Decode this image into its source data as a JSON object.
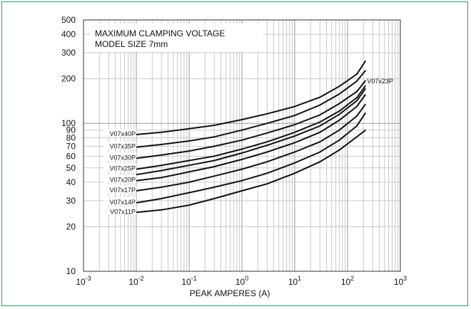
{
  "frame_color": "#2f9b6a",
  "chart_data": {
    "type": "line",
    "title": "MAXIMUM CLAMPING VOLTAGE",
    "subtitle": "MODEL SIZE 7mm",
    "xlabel": "PEAK AMPERES (A)",
    "ylabel": "",
    "xscale": "log",
    "yscale": "log",
    "xlim": [
      0.001,
      1000
    ],
    "ylim": [
      10,
      500
    ],
    "grid": true,
    "y_ticks": [
      "10",
      "20",
      "30",
      "40",
      "50",
      "60",
      "70",
      "80",
      "90",
      "100",
      "200",
      "300",
      "400",
      "500"
    ],
    "x_ticks": [
      {
        "base": "10",
        "exp": "-3"
      },
      {
        "base": "10",
        "exp": "-2"
      },
      {
        "base": "10",
        "exp": "-1"
      },
      {
        "base": "10",
        "exp": "0"
      },
      {
        "base": "10",
        "exp": "1"
      },
      {
        "base": "10",
        "exp": "2"
      },
      {
        "base": "10",
        "exp": "3"
      }
    ],
    "x": [
      0.01,
      0.03,
      0.1,
      0.3,
      1,
      3,
      10,
      30,
      70,
      150,
      220
    ],
    "series": [
      {
        "name": "V07x40P",
        "values": [
          84,
          87,
          92,
          97,
          106,
          116,
          130,
          150,
          178,
          215,
          265
        ]
      },
      {
        "name": "V07x35P",
        "values": [
          69,
          72,
          76,
          81,
          90,
          100,
          113,
          133,
          158,
          193,
          228
        ]
      },
      {
        "name": "V07x30P",
        "values": [
          58,
          61,
          65,
          70,
          77,
          86,
          98,
          114,
          136,
          164,
          195
        ]
      },
      {
        "name": "V07x25P",
        "values": [
          49,
          52,
          56,
          60,
          67,
          75,
          87,
          102,
          121,
          149,
          180
        ]
      },
      {
        "name": "V07x23P",
        "values": [
          45,
          48,
          52,
          56,
          63,
          71,
          82,
          96,
          115,
          142,
          172
        ]
      },
      {
        "name": "V07x20P",
        "values": [
          41,
          43,
          47,
          51,
          57,
          64,
          74,
          87,
          105,
          130,
          157
        ]
      },
      {
        "name": "V07x17P",
        "values": [
          35,
          37,
          40,
          44,
          49,
          55,
          64,
          75,
          90,
          112,
          135
        ]
      },
      {
        "name": "V07x14P",
        "values": [
          29,
          31,
          34,
          37,
          41,
          46,
          54,
          64,
          77,
          96,
          118
        ]
      },
      {
        "name": "V07x11P",
        "values": [
          25,
          26,
          28,
          31,
          35,
          39,
          46,
          55,
          66,
          81,
          90
        ]
      }
    ]
  }
}
